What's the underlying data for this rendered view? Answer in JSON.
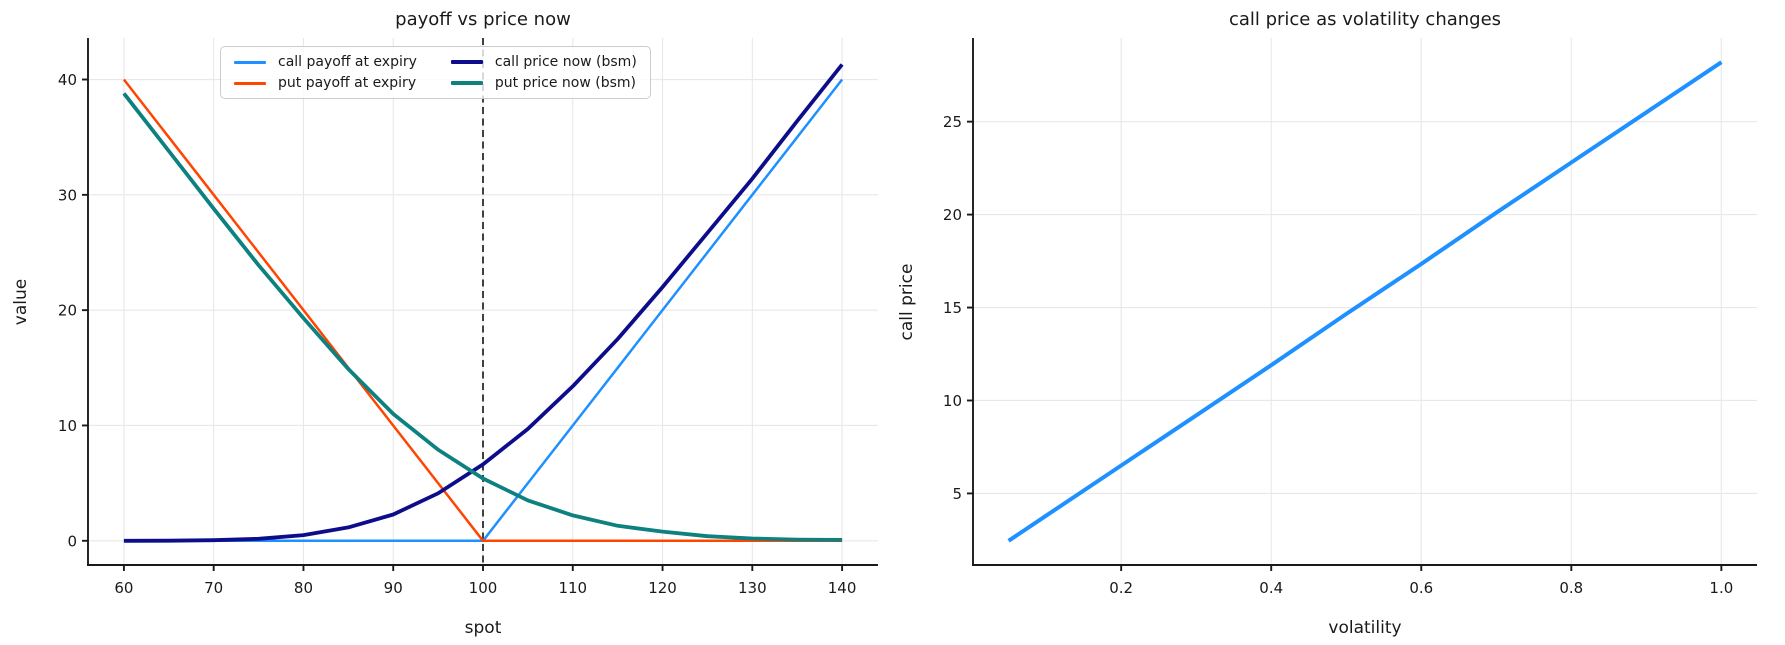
{
  "figure": {
    "background": "#ffffff",
    "grid_color": "#e8e8e8",
    "spine_color": "#1a1a1a",
    "text_color": "#1a1a1a"
  },
  "chart_data": [
    {
      "type": "line",
      "title": "payoff vs price now",
      "xlabel": "spot",
      "ylabel": "value",
      "xlim": [
        56,
        144
      ],
      "ylim": [
        -2.1,
        43.6
      ],
      "xtick_vals": [
        60,
        70,
        80,
        90,
        100,
        110,
        120,
        130,
        140
      ],
      "xtick_labels": [
        "60",
        "70",
        "80",
        "90",
        "100",
        "110",
        "120",
        "130",
        "140"
      ],
      "ytick_vals": [
        0,
        10,
        20,
        30,
        40
      ],
      "ytick_labels": [
        "0",
        "10",
        "20",
        "30",
        "40"
      ],
      "grid": true,
      "legend": {
        "position": "upper center",
        "columns": 2
      },
      "vline": {
        "x": 100,
        "color": "#111111",
        "dash": "7 4.5",
        "width": 1.6
      },
      "x": [
        60,
        65,
        70,
        75,
        80,
        85,
        90,
        95,
        100,
        105,
        110,
        115,
        120,
        125,
        130,
        135,
        140
      ],
      "series": [
        {
          "name": "call payoff at expiry",
          "color": "#1e90ff",
          "width": 2.5,
          "values": [
            0,
            0,
            0,
            0,
            0,
            0,
            0,
            0,
            0,
            5,
            10,
            15,
            20,
            25,
            30,
            35,
            40
          ]
        },
        {
          "name": "put payoff at expiry",
          "color": "#ff4500",
          "width": 2.5,
          "values": [
            40,
            35,
            30,
            25,
            20,
            15,
            10,
            5,
            0,
            0,
            0,
            0,
            0,
            0,
            0,
            0,
            0
          ]
        },
        {
          "name": "call price now (bsm)",
          "color": "#0d0d8c",
          "width": 3.8,
          "values": [
            0.0,
            0.01,
            0.05,
            0.17,
            0.49,
            1.16,
            2.28,
            4.12,
            6.62,
            9.7,
            13.4,
            17.5,
            22.0,
            26.7,
            31.4,
            36.4,
            41.3
          ]
        },
        {
          "name": "put price now (bsm)",
          "color": "#0d8080",
          "width": 3.8,
          "values": [
            38.8,
            33.8,
            28.8,
            23.9,
            19.3,
            14.9,
            11.0,
            7.9,
            5.4,
            3.5,
            2.2,
            1.3,
            0.8,
            0.4,
            0.2,
            0.1,
            0.08
          ]
        }
      ]
    },
    {
      "type": "line",
      "title": "call price as volatility changes",
      "xlabel": "volatility",
      "ylabel": "call price",
      "xlim": [
        0.0025,
        1.0475
      ],
      "ylim": [
        1.15,
        29.5
      ],
      "xtick_vals": [
        0.2,
        0.4,
        0.6,
        0.8,
        1.0
      ],
      "xtick_labels": [
        "0.2",
        "0.4",
        "0.6",
        "0.8",
        "1.0"
      ],
      "ytick_vals": [
        5,
        10,
        15,
        20,
        25
      ],
      "ytick_labels": [
        "5",
        "10",
        "15",
        "20",
        "25"
      ],
      "grid": true,
      "x": [
        0.05,
        0.1,
        0.2,
        0.3,
        0.4,
        0.5,
        0.6,
        0.7,
        0.8,
        0.9,
        1.0
      ],
      "series": [
        {
          "name": "call price",
          "color": "#1e90ff",
          "width": 4,
          "values": [
            2.45,
            3.8,
            6.5,
            9.2,
            11.9,
            14.65,
            17.35,
            20.1,
            22.8,
            25.5,
            28.2
          ]
        }
      ]
    }
  ]
}
